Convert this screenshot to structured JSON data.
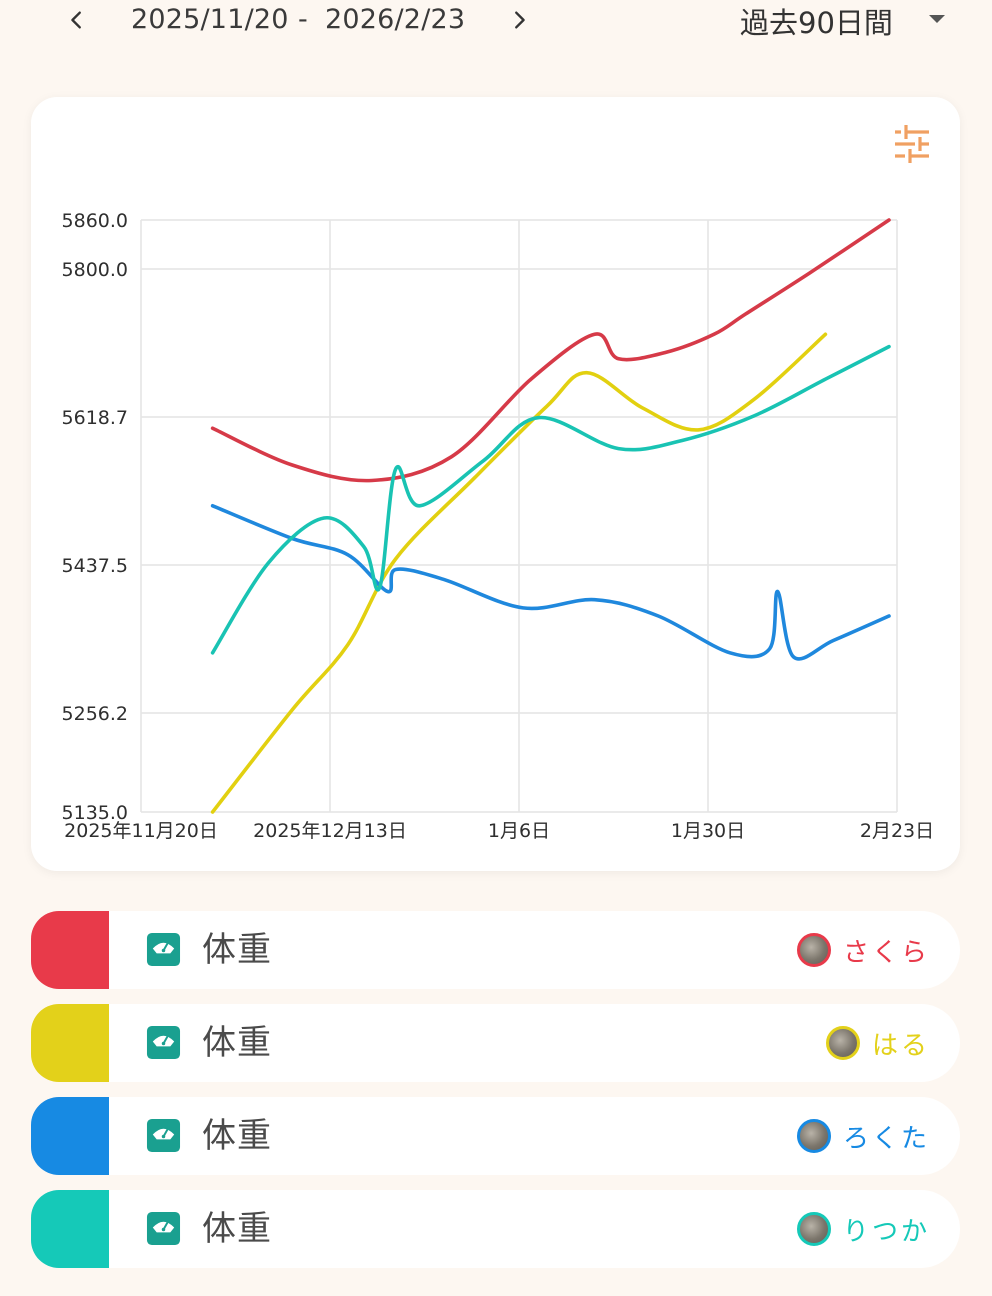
{
  "header": {
    "prev_label": "<",
    "next_label": ">",
    "start_date": "2025/11/20",
    "separator": "-",
    "end_date": "2026/2/23",
    "range_label": "過去90日間"
  },
  "chart_data": {
    "type": "line",
    "y_ticks": [
      "5860.0",
      "5800.0",
      "5618.7",
      "5437.5",
      "5256.2",
      "5135.0"
    ],
    "x_ticks": [
      "2025年11月20日",
      "2025年12月13日",
      "1月6日",
      "1月30日",
      "2月23日"
    ],
    "ylim": [
      5135,
      5860
    ],
    "xlim": [
      "2025-11-20",
      "2026-02-23"
    ],
    "grid": true,
    "series": [
      {
        "name": "さくら",
        "color": "#d63a48",
        "x": [
          "2025-11-29",
          "2025-12-09",
          "2025-12-19",
          "2025-12-29",
          "2026-01-08",
          "2026-01-16",
          "2026-01-19",
          "2026-01-25",
          "2026-01-31",
          "2026-02-04",
          "2026-02-12",
          "2026-02-22"
        ],
        "y": [
          5605,
          5560,
          5541,
          5570,
          5665,
          5720,
          5690,
          5698,
          5720,
          5745,
          5795,
          5860
        ]
      },
      {
        "name": "はる",
        "color": "#e2d010",
        "x": [
          "2025-11-29",
          "2025-12-09",
          "2025-12-16",
          "2025-12-22",
          "2026-01-01",
          "2026-01-10",
          "2026-01-15",
          "2026-01-22",
          "2026-01-29",
          "2026-02-05",
          "2026-02-14"
        ],
        "y": [
          5135,
          5260,
          5340,
          5445,
          5545,
          5632,
          5673,
          5630,
          5603,
          5640,
          5720
        ]
      },
      {
        "name": "ろくた",
        "color": "#1f88dd",
        "x": [
          "2025-11-29",
          "2025-12-09",
          "2025-12-16",
          "2025-12-21",
          "2025-12-22",
          "2025-12-28",
          "2026-01-07",
          "2026-01-16",
          "2026-01-24",
          "2026-02-02",
          "2026-02-07",
          "2026-02-08",
          "2026-02-10",
          "2026-02-15",
          "2026-02-22"
        ],
        "y": [
          5510,
          5470,
          5450,
          5405,
          5432,
          5420,
          5385,
          5395,
          5375,
          5330,
          5335,
          5405,
          5325,
          5345,
          5375
        ]
      },
      {
        "name": "りつか",
        "color": "#19c3b3",
        "x": [
          "2025-11-29",
          "2025-12-06",
          "2025-12-13",
          "2025-12-18",
          "2025-12-20",
          "2025-12-22",
          "2025-12-25",
          "2026-01-02",
          "2026-01-09",
          "2026-01-19",
          "2026-01-27",
          "2026-02-05",
          "2026-02-14",
          "2026-02-22"
        ],
        "y": [
          5330,
          5440,
          5495,
          5460,
          5410,
          5555,
          5510,
          5565,
          5618,
          5580,
          5590,
          5620,
          5665,
          5705
        ]
      }
    ]
  },
  "legend": [
    {
      "label": "体重",
      "pet": "さくら",
      "color": "#e83a4a"
    },
    {
      "label": "体重",
      "pet": "はる",
      "color": "#e3d11a"
    },
    {
      "label": "体重",
      "pet": "ろくた",
      "color": "#178ae3"
    },
    {
      "label": "体重",
      "pet": "りつか",
      "color": "#15c9b8"
    }
  ],
  "icons": {
    "prev": "chevron-left-icon",
    "next": "chevron-right-icon",
    "dropdown": "caret-down-icon",
    "filter": "sliders-icon",
    "metric": "scale-icon",
    "pet": "pet-avatar"
  },
  "colors": {
    "background": "#fdf7f1",
    "accent": "#f0a062",
    "metric_icon": "#1aa090"
  }
}
